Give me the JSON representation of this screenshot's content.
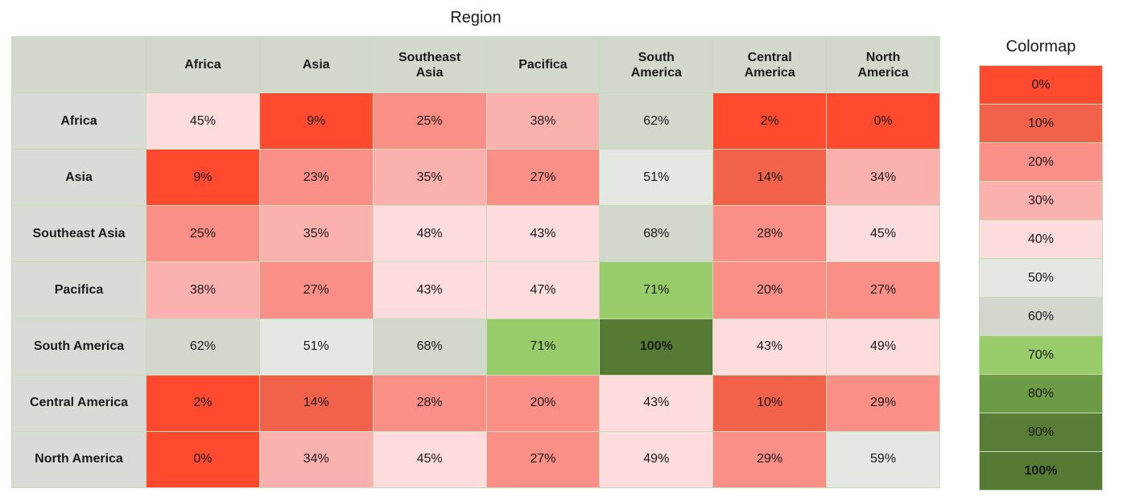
{
  "colors": {
    "0": "#ff4a30",
    "10": "#f26149",
    "20": "#f98f86",
    "30": "#fbb1ae",
    "40": "#fcdcdc",
    "50": "#e5e8e2",
    "60": "#d2d9cc",
    "70": "#98cb6a",
    "80": "#6d9a45",
    "90": "#587d36",
    "100": "#557a34"
  },
  "chart_data": {
    "type": "heatmap",
    "title": "Region",
    "columns": [
      "Africa",
      "Asia",
      "Southeast\nAsia",
      "Pacifica",
      "South\nAmerica",
      "Central\nAmerica",
      "North\nAmerica"
    ],
    "rows": [
      "Africa",
      "Asia",
      "Southeast Asia",
      "Pacifica",
      "South America",
      "Central America",
      "North America"
    ],
    "values": [
      [
        45,
        9,
        25,
        38,
        62,
        2,
        0
      ],
      [
        9,
        23,
        35,
        27,
        51,
        14,
        34
      ],
      [
        25,
        35,
        48,
        43,
        68,
        28,
        45
      ],
      [
        38,
        27,
        43,
        47,
        71,
        20,
        27
      ],
      [
        62,
        51,
        68,
        71,
        100,
        43,
        49
      ],
      [
        2,
        14,
        28,
        20,
        43,
        10,
        29
      ],
      [
        0,
        34,
        45,
        27,
        49,
        29,
        59
      ]
    ],
    "unit": "%",
    "colormap": {
      "title": "Colormap",
      "levels": [
        0,
        10,
        20,
        30,
        40,
        50,
        60,
        70,
        80,
        90,
        100
      ]
    }
  }
}
